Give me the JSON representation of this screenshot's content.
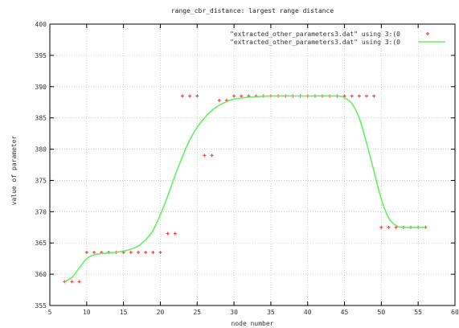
{
  "chart_data": {
    "type": "scatter",
    "title": "range_cbr_distance: largest range distance",
    "xlabel": "node number",
    "ylabel": "value of parameter",
    "xlim": [
      5,
      60
    ],
    "ylim": [
      355,
      400
    ],
    "x_ticks": [
      "5",
      "10",
      "15",
      "20",
      "25",
      "30",
      "35",
      "40",
      "45",
      "50",
      "55",
      "60"
    ],
    "y_ticks": [
      "355",
      "360",
      "365",
      "370",
      "375",
      "380",
      "385",
      "390",
      "395",
      "400"
    ],
    "grid": true,
    "legend_position": "top-right",
    "series": [
      {
        "name": "\"extracted_other_parameters3.dat\" using 3:(0",
        "style": "points",
        "marker": "+",
        "color": "#ff4040",
        "points": [
          [
            7,
            358.8
          ],
          [
            8,
            358.8
          ],
          [
            9,
            358.8
          ],
          [
            10,
            363.5
          ],
          [
            11,
            363.5
          ],
          [
            12,
            363.5
          ],
          [
            13,
            363.5
          ],
          [
            14,
            363.5
          ],
          [
            15,
            363.5
          ],
          [
            16,
            363.5
          ],
          [
            17,
            363.5
          ],
          [
            18,
            363.5
          ],
          [
            19,
            363.5
          ],
          [
            20,
            363.5
          ],
          [
            21,
            366.5
          ],
          [
            22,
            366.5
          ],
          [
            23,
            388.5
          ],
          [
            24,
            388.5
          ],
          [
            25,
            388.5
          ],
          [
            26,
            379
          ],
          [
            27,
            379
          ],
          [
            28,
            387.8
          ],
          [
            29,
            387.8
          ],
          [
            30,
            388.5
          ],
          [
            31,
            388.5
          ],
          [
            32,
            388.5
          ],
          [
            33,
            388.5
          ],
          [
            34,
            388.5
          ],
          [
            35,
            388.5
          ],
          [
            36,
            388.5
          ],
          [
            37,
            388.5
          ],
          [
            38,
            388.5
          ],
          [
            39,
            388.5
          ],
          [
            40,
            388.5
          ],
          [
            41,
            388.5
          ],
          [
            42,
            388.5
          ],
          [
            43,
            388.5
          ],
          [
            44,
            388.5
          ],
          [
            45,
            388.5
          ],
          [
            46,
            388.5
          ],
          [
            47,
            388.5
          ],
          [
            48,
            388.5
          ],
          [
            49,
            388.5
          ],
          [
            50,
            367.5
          ],
          [
            51,
            367.5
          ],
          [
            52,
            367.5
          ],
          [
            53,
            367.5
          ],
          [
            54,
            367.5
          ],
          [
            55,
            367.5
          ],
          [
            56,
            367.5
          ]
        ]
      },
      {
        "name": "\"extracted_other_parameters3.dat\" using 3:(0",
        "style": "line",
        "color": "#66ee66",
        "points": [
          [
            7,
            358.8
          ],
          [
            8,
            359.5
          ],
          [
            9,
            361
          ],
          [
            10,
            362.5
          ],
          [
            11,
            363.1
          ],
          [
            12,
            363.3
          ],
          [
            13,
            363.4
          ],
          [
            14,
            363.5
          ],
          [
            15,
            363.7
          ],
          [
            16,
            364
          ],
          [
            17,
            364.5
          ],
          [
            18,
            365.5
          ],
          [
            19,
            367
          ],
          [
            20,
            369.5
          ],
          [
            21,
            372.5
          ],
          [
            22,
            375.8
          ],
          [
            23,
            378.8
          ],
          [
            24,
            381.5
          ],
          [
            25,
            383.5
          ],
          [
            26,
            385
          ],
          [
            27,
            386.2
          ],
          [
            28,
            387
          ],
          [
            29,
            387.6
          ],
          [
            30,
            388
          ],
          [
            32,
            388.3
          ],
          [
            35,
            388.5
          ],
          [
            40,
            388.5
          ],
          [
            44,
            388.5
          ],
          [
            45,
            388.2
          ],
          [
            46,
            387.3
          ],
          [
            47,
            385
          ],
          [
            48,
            381
          ],
          [
            49,
            376.5
          ],
          [
            50,
            372
          ],
          [
            51,
            369
          ],
          [
            52,
            367.8
          ],
          [
            53,
            367.5
          ],
          [
            56,
            367.5
          ]
        ]
      }
    ]
  }
}
